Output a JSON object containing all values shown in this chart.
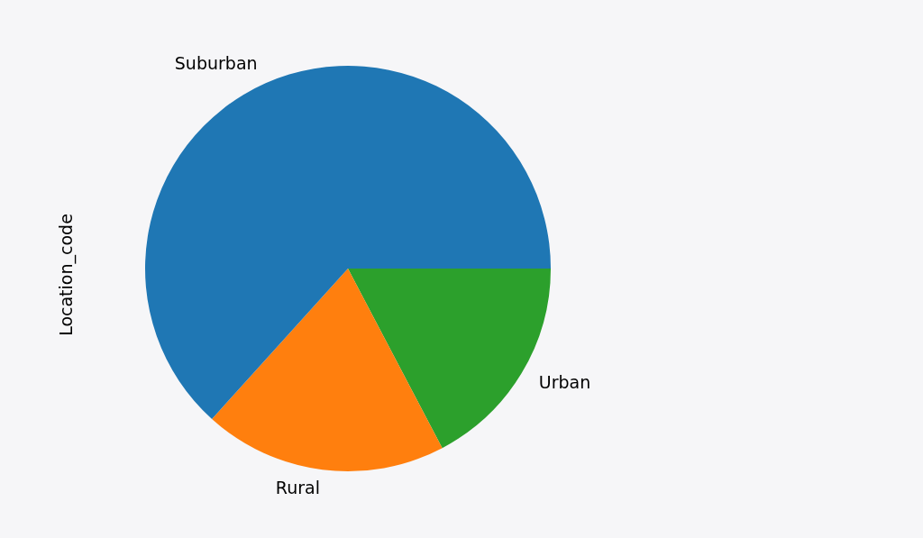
{
  "chart_data": {
    "type": "pie",
    "ylabel": "Location_code",
    "categories": [
      "Suburban",
      "Rural",
      "Urban"
    ],
    "values": [
      63.3,
      19.4,
      17.3
    ],
    "colors": [
      "#1f77b4",
      "#ff7f0e",
      "#2ca02c"
    ]
  }
}
